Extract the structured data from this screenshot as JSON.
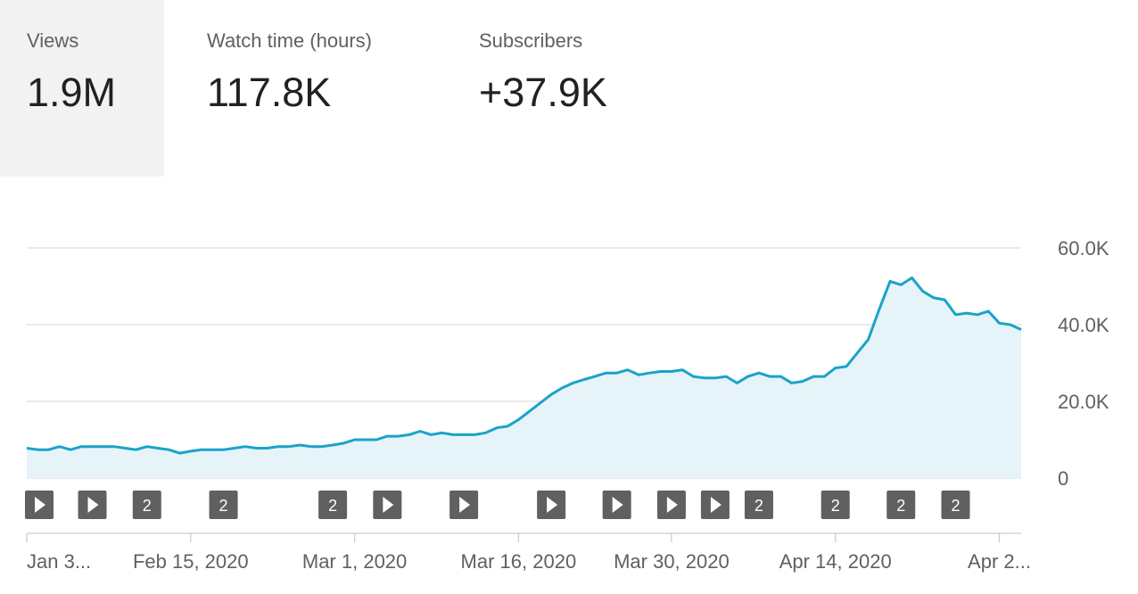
{
  "metrics": [
    {
      "label": "Views",
      "value": "1.9M",
      "active": true
    },
    {
      "label": "Watch time (hours)",
      "value": "117.8K",
      "active": false
    },
    {
      "label": "Subscribers",
      "value": "+37.9K",
      "active": false
    }
  ],
  "colors": {
    "line": "#1aa3c9",
    "area": "#e6f4f9",
    "grid": "#dddddd",
    "marker": "#606060",
    "active_bg": "#f2f2f2"
  },
  "chart_data": {
    "type": "area",
    "ylim": [
      0,
      60000
    ],
    "y_ticks": [
      {
        "value": 60000,
        "label": "60.0K"
      },
      {
        "value": 40000,
        "label": "40.0K"
      },
      {
        "value": 20000,
        "label": "20.0K"
      },
      {
        "value": 0,
        "label": "0"
      }
    ],
    "x_ticks": [
      {
        "index": 0,
        "label": "Jan 3..."
      },
      {
        "index": 15,
        "label": "Feb 15, 2020"
      },
      {
        "index": 30,
        "label": "Mar 1, 2020"
      },
      {
        "index": 45,
        "label": "Mar 16, 2020"
      },
      {
        "index": 59,
        "label": "Mar 30, 2020"
      },
      {
        "index": 74,
        "label": "Apr 14, 2020"
      },
      {
        "index": 89,
        "label": "Apr 2..."
      }
    ],
    "values": [
      7800,
      7400,
      7400,
      8200,
      7400,
      8200,
      8200,
      8200,
      8200,
      7800,
      7400,
      8200,
      7800,
      7400,
      6500,
      7000,
      7400,
      7400,
      7400,
      7800,
      8200,
      7800,
      7800,
      8200,
      8200,
      8600,
      8200,
      8200,
      8600,
      9100,
      10000,
      10000,
      10000,
      10900,
      10900,
      11300,
      12200,
      11300,
      11800,
      11300,
      11300,
      11300,
      11800,
      13100,
      13500,
      15200,
      17400,
      19600,
      21800,
      23500,
      24800,
      25700,
      26500,
      27400,
      27400,
      28200,
      26900,
      27400,
      27800,
      27800,
      28200,
      26500,
      26100,
      26100,
      26500,
      24800,
      26500,
      27400,
      26500,
      26500,
      24800,
      25200,
      26500,
      26500,
      28700,
      29100,
      32600,
      36100,
      43900,
      51300,
      50400,
      52200,
      48700,
      47000,
      46500,
      42600,
      43000,
      42600,
      43500,
      40400,
      40000,
      38700
    ],
    "annotations": [
      {
        "index": 1,
        "kind": "play"
      },
      {
        "index": 6,
        "kind": "play"
      },
      {
        "index": 11,
        "kind": "count",
        "count": "2"
      },
      {
        "index": 18,
        "kind": "count",
        "count": "2"
      },
      {
        "index": 28,
        "kind": "count",
        "count": "2"
      },
      {
        "index": 33,
        "kind": "play"
      },
      {
        "index": 40,
        "kind": "play"
      },
      {
        "index": 48,
        "kind": "play"
      },
      {
        "index": 54,
        "kind": "play"
      },
      {
        "index": 59,
        "kind": "play"
      },
      {
        "index": 63,
        "kind": "play"
      },
      {
        "index": 67,
        "kind": "count",
        "count": "2"
      },
      {
        "index": 74,
        "kind": "count",
        "count": "2"
      },
      {
        "index": 80,
        "kind": "count",
        "count": "2"
      },
      {
        "index": 85,
        "kind": "count",
        "count": "2"
      }
    ]
  }
}
